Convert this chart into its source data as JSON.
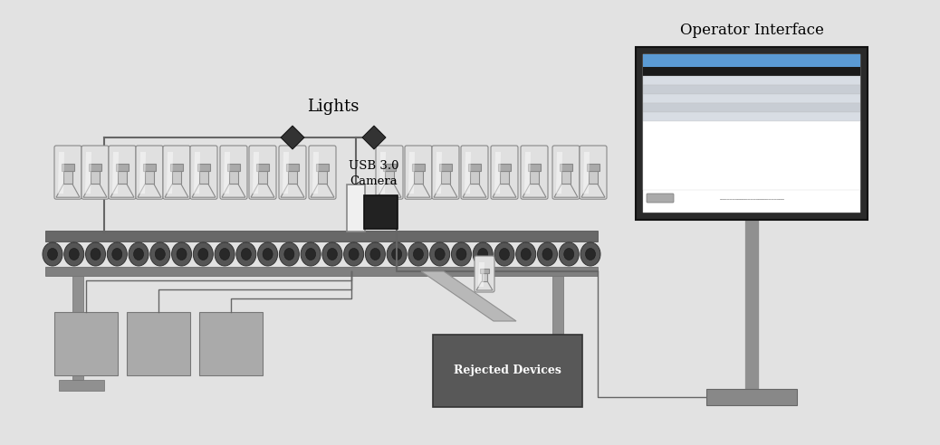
{
  "bg_color": "#e2e2e2",
  "title_operator": "Operator Interface",
  "label_lights": "Lights",
  "label_camera": "USB 3.0\nCamera",
  "label_rejected": "Rejected Devices",
  "wire_color": "#666666",
  "stand_color": "#909090",
  "dark_box_color": "#606060",
  "box_color": "#aaaaaa",
  "roller_dark": "#404040",
  "roller_mid": "#606060",
  "bottle_fill": "#e0e0e0",
  "bottle_outline": "#888888",
  "cam_white": "#f0f0f0",
  "cam_black": "#222222",
  "diamond_color": "#333333",
  "table_bar_color": "#888888",
  "leg_color": "#909090",
  "chute_color": "#b0b0b0",
  "mon_frame": "#2a2a2a",
  "mon_screen_bg": "#ffffff",
  "mon_titlebar": "#5b9bd5",
  "mon_row1": "#d0d8e0",
  "mon_row2": "#c0c8d0",
  "mon_black_row": "#1a1a1a",
  "mon_content": "#f5f5f5"
}
